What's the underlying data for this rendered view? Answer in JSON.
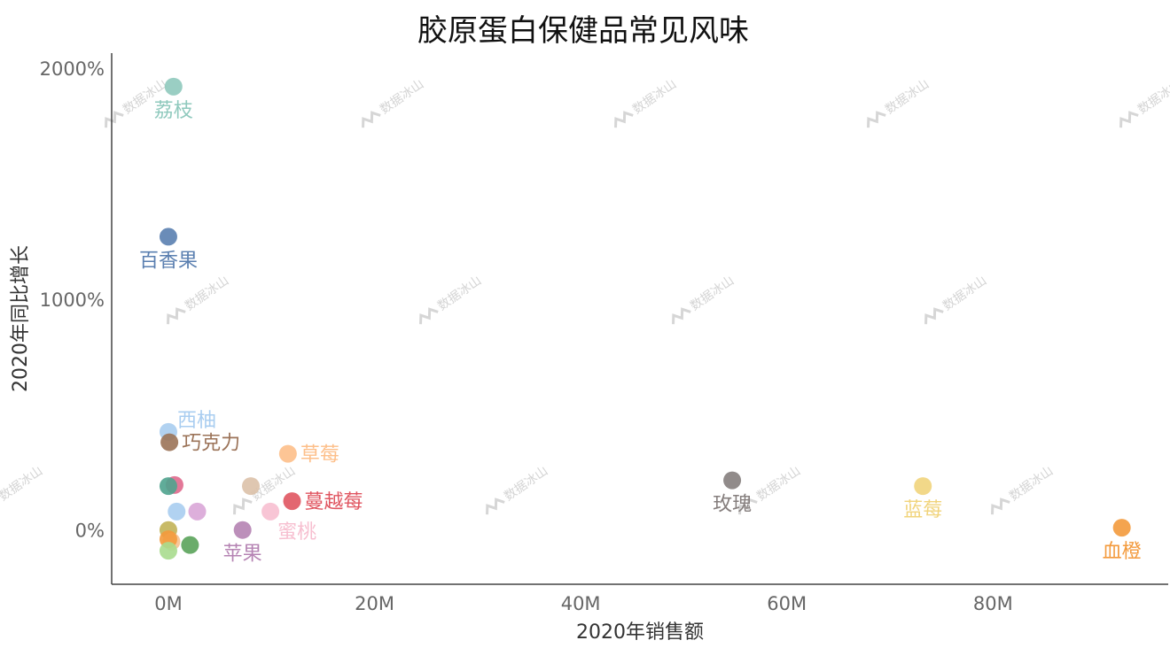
{
  "chart_data": {
    "type": "scatter",
    "title": "胶原蛋白保健品常见风味",
    "xlabel": "2020年销售额",
    "ylabel": "2020年同比增长",
    "xlim": [
      -5.5,
      97
    ],
    "ylim": [
      -235,
      2065
    ],
    "xticks": [
      0,
      20,
      40,
      60,
      80
    ],
    "xtick_labels": [
      "0M",
      "20M",
      "40M",
      "60M",
      "80M"
    ],
    "yticks": [
      0,
      1000,
      2000
    ],
    "ytick_labels": [
      "0%",
      "1000%",
      "2000%"
    ],
    "grid": false,
    "legend": "none",
    "watermark": "数据冰山",
    "series": [
      {
        "label": "荔枝",
        "x": 0.5,
        "y": 1920,
        "color": "#8fc9bd",
        "label_pos": "below"
      },
      {
        "label": "百香果",
        "x": 0.0,
        "y": 1270,
        "color": "#5a7fb0",
        "label_pos": "below"
      },
      {
        "label": "西柚",
        "x": 0.0,
        "y": 425,
        "color": "#a9cdf0",
        "label_pos": "upper-right"
      },
      {
        "label": "巧克力",
        "x": 0.1,
        "y": 380,
        "color": "#9b7358",
        "label_pos": "right"
      },
      {
        "label": "草莓",
        "x": 11.6,
        "y": 330,
        "color": "#fdbf8a",
        "label_pos": "right"
      },
      {
        "label": "玫瑰",
        "x": 54.7,
        "y": 215,
        "color": "#857e7d",
        "label_pos": "below"
      },
      {
        "label": "蓝莓",
        "x": 73.2,
        "y": 190,
        "color": "#f1d47c",
        "label_pos": "below"
      },
      {
        "label": "蔓越莓",
        "x": 12.0,
        "y": 125,
        "color": "#e05560",
        "label_pos": "right"
      },
      {
        "label": "蜜桃",
        "x": 9.9,
        "y": 80,
        "color": "#f7bfd0",
        "label_pos": "lower-right"
      },
      {
        "label": "苹果",
        "x": 7.2,
        "y": 0,
        "color": "#b583b3",
        "label_pos": "below"
      },
      {
        "label": "血橙",
        "x": 92.5,
        "y": 10,
        "color": "#f39a3c",
        "label_pos": "below"
      },
      {
        "label": "",
        "x": 0.6,
        "y": 195,
        "color": "#e0698d"
      },
      {
        "label": "",
        "x": 0.0,
        "y": 190,
        "color": "#4fa38e"
      },
      {
        "label": "",
        "x": 8.0,
        "y": 190,
        "color": "#dbc1a8"
      },
      {
        "label": "",
        "x": 0.8,
        "y": 80,
        "color": "#a9cdf0"
      },
      {
        "label": "",
        "x": 2.8,
        "y": 80,
        "color": "#d9a6d7"
      },
      {
        "label": "",
        "x": 0.0,
        "y": 0,
        "color": "#c2b256"
      },
      {
        "label": "",
        "x": 0.3,
        "y": -50,
        "color": "#f5c18f"
      },
      {
        "label": "",
        "x": 0.0,
        "y": -40,
        "color": "#f39a3c"
      },
      {
        "label": "",
        "x": 2.1,
        "y": -65,
        "color": "#5aa35a"
      },
      {
        "label": "",
        "x": 0.0,
        "y": -90,
        "color": "#a9dc8e"
      }
    ]
  }
}
